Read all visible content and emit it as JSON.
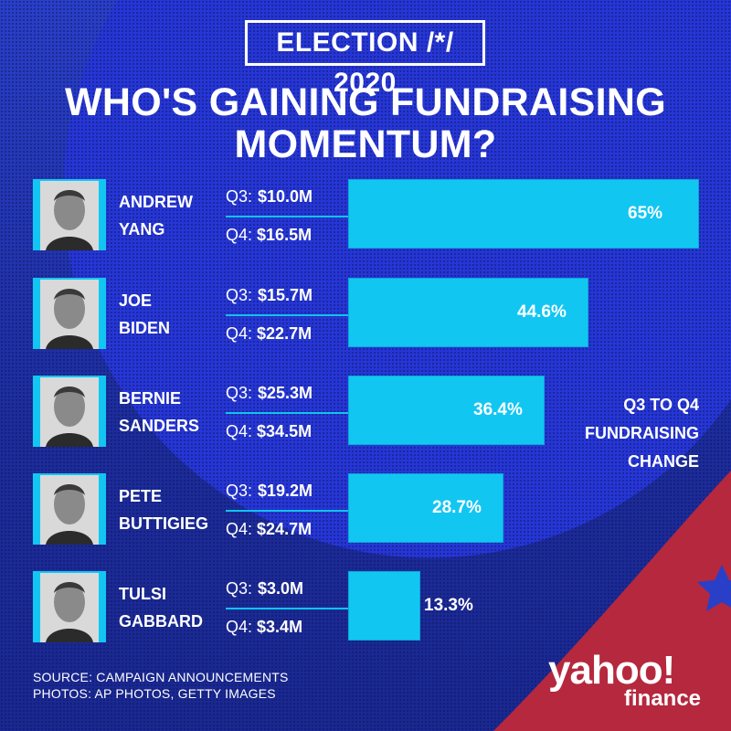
{
  "badge": "ELECTION /*/ 2020",
  "title_line1": "WHO'S GAINING FUNDRAISING",
  "title_line2": "MOMENTUM?",
  "legend": [
    "Q3 TO Q4",
    "FUNDRAISING",
    "CHANGE"
  ],
  "source_line": "SOURCE:  CAMPAIGN ANNOUNCEMENTS",
  "photos_line": "PHOTOS:  AP PHOTOS, GETTY IMAGES",
  "logo": {
    "main": "yahoo!",
    "sub": "finance"
  },
  "colors": {
    "bar": "#12c6f2",
    "background": "#2a3fc8",
    "accent_red": "#b5283e"
  },
  "chart_data": {
    "type": "bar",
    "orientation": "horizontal",
    "categories": [
      "ANDREW YANG",
      "JOE BIDEN",
      "BERNIE SANDERS",
      "PETE BUTTIGIEG",
      "TULSI GABBARD"
    ],
    "series": [
      {
        "name": "Q3 TO Q4 FUNDRAISING CHANGE",
        "values": [
          65,
          44.6,
          36.4,
          28.7,
          13.3
        ]
      }
    ],
    "rows": [
      {
        "first": "ANDREW",
        "last": "YANG",
        "q3_label": "Q3:",
        "q3": "$10.0M",
        "q4_label": "Q4:",
        "q4": "$16.5M",
        "change": 65,
        "change_label": "65%"
      },
      {
        "first": "JOE",
        "last": "BIDEN",
        "q3_label": "Q3:",
        "q3": "$15.7M",
        "q4_label": "Q4:",
        "q4": "$22.7M",
        "change": 44.6,
        "change_label": "44.6%"
      },
      {
        "first": "BERNIE",
        "last": "SANDERS",
        "q3_label": "Q3:",
        "q3": "$25.3M",
        "q4_label": "Q4:",
        "q4": "$34.5M",
        "change": 36.4,
        "change_label": "36.4%"
      },
      {
        "first": "PETE",
        "last": "BUTTIGIEG",
        "q3_label": "Q3:",
        "q3": "$19.2M",
        "q4_label": "Q4:",
        "q4": "$24.7M",
        "change": 28.7,
        "change_label": "28.7%"
      },
      {
        "first": "TULSI",
        "last": "GABBARD",
        "q3_label": "Q3:",
        "q3": "$3.0M",
        "q4_label": "Q4:",
        "q4": "$3.4M",
        "change": 13.3,
        "change_label": "13.3%"
      }
    ],
    "xlim": [
      0,
      65
    ]
  }
}
